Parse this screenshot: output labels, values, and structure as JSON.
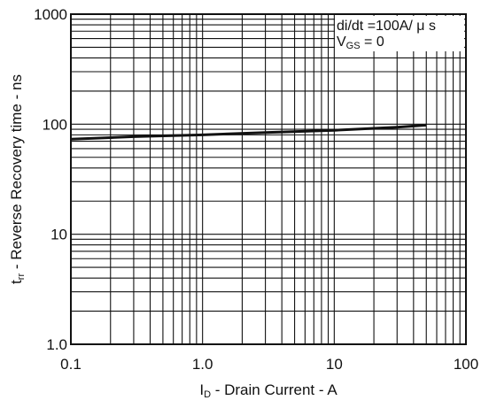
{
  "chart_data": {
    "type": "line",
    "x_scale": "log",
    "y_scale": "log",
    "xlim": [
      0.1,
      100
    ],
    "ylim": [
      1.0,
      1000
    ],
    "grid": true,
    "x_ticks": [
      "0.1",
      "1.0",
      "10",
      "100"
    ],
    "y_ticks": [
      "1.0",
      "10",
      "100",
      "1000"
    ],
    "xlabel": "ID - Drain Current - A",
    "xlabel_main": "I",
    "xlabel_sub": "D",
    "xlabel_rest": " - Drain Current   - A",
    "ylabel": "trr - Reverse Recovery time - ns",
    "ylabel_main": "t",
    "ylabel_sub": "rr",
    "ylabel_rest": " - Reverse Recovery time  -  ns",
    "annotations": {
      "line1": "di/dt =100A/ μ s",
      "line2_main": "V",
      "line2_sub": "GS",
      "line2_rest": " = 0"
    },
    "series": [
      {
        "x": [
          0.1,
          0.3,
          1,
          3,
          10,
          30,
          50
        ],
        "y": [
          73,
          77,
          80,
          84,
          88,
          94,
          98
        ]
      }
    ]
  }
}
